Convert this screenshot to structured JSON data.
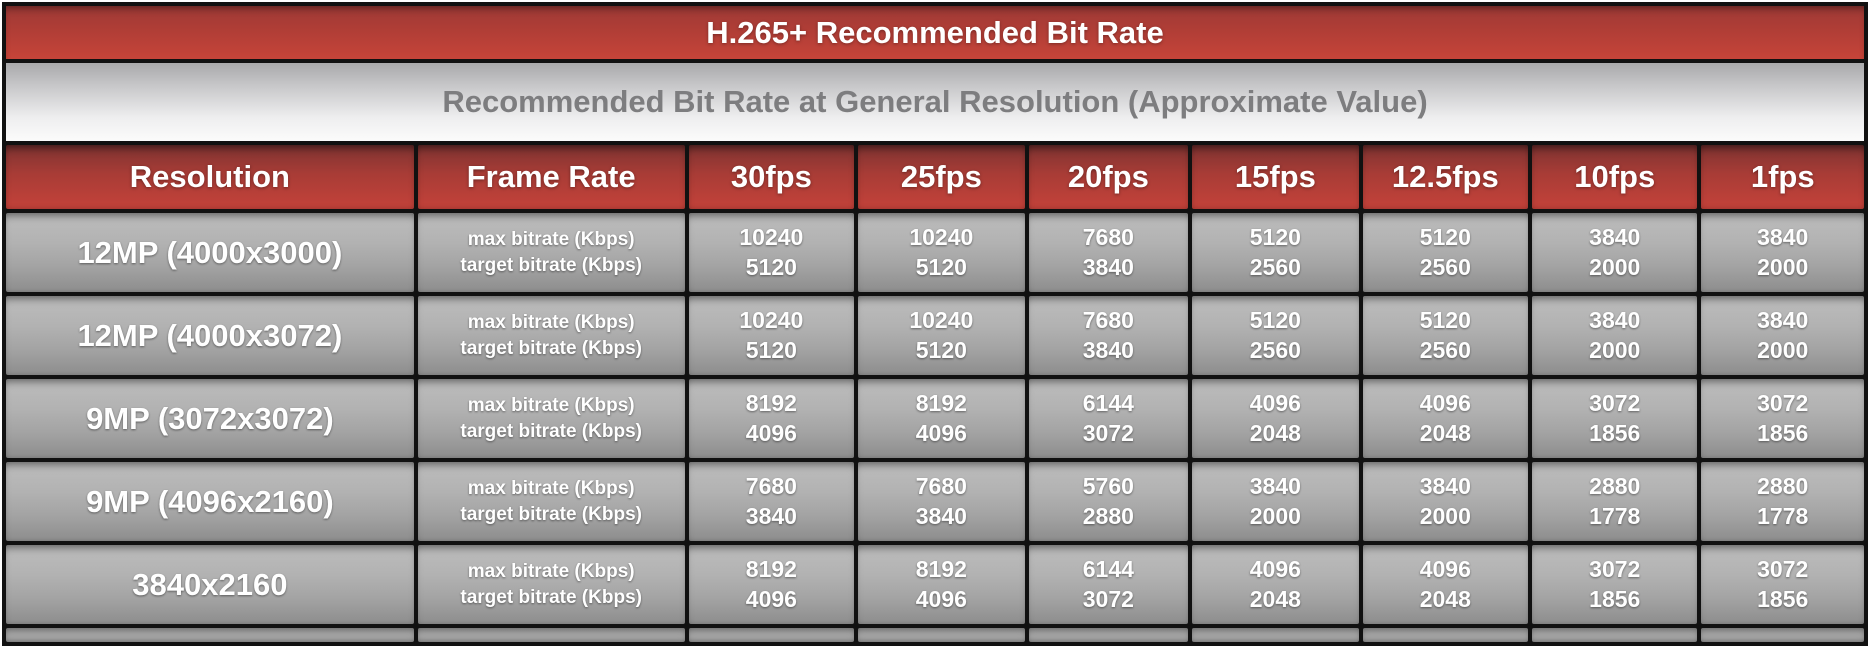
{
  "chart_data": {
    "type": "table",
    "title": "H.265+ Recommended Bit Rate",
    "subtitle": "Recommended Bit Rate at General Resolution (Approximate Value)",
    "columns": [
      "Resolution",
      "Frame Rate",
      "30fps",
      "25fps",
      "20fps",
      "15fps",
      "12.5fps",
      "10fps",
      "1fps"
    ],
    "metric_labels": [
      "max bitrate (Kbps)",
      "target bitrate (Kbps)"
    ],
    "rows": [
      {
        "resolution": "12MP (4000x3000)",
        "max": [
          10240,
          10240,
          7680,
          5120,
          5120,
          3840,
          3840
        ],
        "target": [
          5120,
          5120,
          3840,
          2560,
          2560,
          2000,
          2000
        ]
      },
      {
        "resolution": "12MP (4000x3072)",
        "max": [
          10240,
          10240,
          7680,
          5120,
          5120,
          3840,
          3840
        ],
        "target": [
          5120,
          5120,
          3840,
          2560,
          2560,
          2000,
          2000
        ]
      },
      {
        "resolution": "9MP (3072x3072)",
        "max": [
          8192,
          8192,
          6144,
          4096,
          4096,
          3072,
          3072
        ],
        "target": [
          4096,
          4096,
          3072,
          2048,
          2048,
          1856,
          1856
        ]
      },
      {
        "resolution": "9MP (4096x2160)",
        "max": [
          7680,
          7680,
          5760,
          3840,
          3840,
          2880,
          2880
        ],
        "target": [
          3840,
          3840,
          2880,
          2000,
          2000,
          1778,
          1778
        ]
      },
      {
        "resolution": "3840x2160",
        "max": [
          8192,
          8192,
          6144,
          4096,
          4096,
          3072,
          3072
        ],
        "target": [
          4096,
          4096,
          3072,
          2048,
          2048,
          1856,
          1856
        ]
      }
    ],
    "layout_hints": {
      "units": "Kbps",
      "value_order_per_cell": [
        "max bitrate",
        "target bitrate"
      ],
      "bottom_row_clipped": true
    },
    "colors": {
      "title_red_top": "#9d3a36",
      "title_red_bottom": "#c64439",
      "header_red_top": "#7e3331",
      "header_red_bottom": "#c4423a",
      "cell_gray_top": "#bdbdbd",
      "cell_gray_bottom": "#8d8d8d",
      "subtitle_silver_top": "#a9a9ab",
      "subtitle_silver_bottom": "#fbfbfb",
      "subtitle_text": "#7d7d7f",
      "cell_text": "#ffffff",
      "border_black": "#111111"
    }
  }
}
